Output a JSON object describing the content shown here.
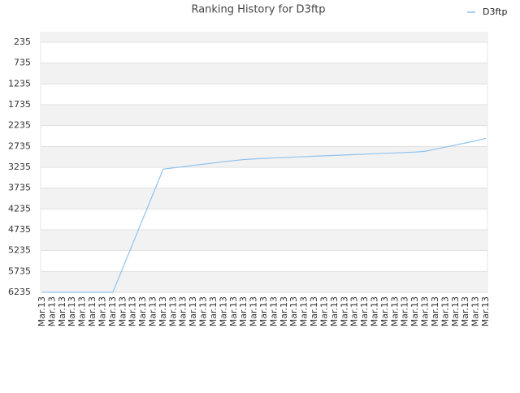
{
  "chart_data": {
    "type": "line",
    "title": "Ranking History for D3ftp",
    "categories": [
      "Mar.13",
      "Mar.13",
      "Mar.13",
      "Mar.13",
      "Mar.13",
      "Mar.13",
      "Mar.13",
      "Mar.13",
      "Mar.13",
      "Mar.13",
      "Mar.13",
      "Mar.13",
      "Mar.13",
      "Mar.13",
      "Mar.13",
      "Mar.13",
      "Mar.13",
      "Mar.13",
      "Mar.13",
      "Mar.13",
      "Mar.13",
      "Mar.13",
      "Mar.13",
      "Mar.13",
      "Mar.13",
      "Mar.13",
      "Mar.13",
      "Mar.13",
      "Mar.13",
      "Mar.13",
      "Mar.13",
      "Mar.13",
      "Mar.13",
      "Mar.13",
      "Mar.13",
      "Mar.13",
      "Mar.13",
      "Mar.13",
      "Mar.13",
      "Mar.13",
      "Mar.13",
      "Mar.13",
      "Mar.13",
      "Mar.13",
      "Mar.13"
    ],
    "series": [
      {
        "name": "D3ftp",
        "color": "#90c3ee",
        "values": [
          6235,
          6235,
          6235,
          6235,
          6235,
          6235,
          6235,
          6235,
          5644,
          5053,
          4462,
          3871,
          3280,
          3250,
          3220,
          3190,
          3160,
          3130,
          3100,
          3075,
          3050,
          3035,
          3020,
          3010,
          3000,
          2990,
          2980,
          2970,
          2960,
          2950,
          2940,
          2930,
          2920,
          2910,
          2900,
          2890,
          2880,
          2870,
          2850,
          2800,
          2750,
          2700,
          2650,
          2600,
          2540
        ]
      }
    ],
    "ylim": [
      1,
      6235
    ],
    "y_reversed": true,
    "yticks": [
      235,
      735,
      1235,
      1735,
      2235,
      2735,
      3235,
      3735,
      4235,
      4735,
      5235,
      5735,
      6235
    ],
    "grid": true,
    "legend": "top-right"
  }
}
